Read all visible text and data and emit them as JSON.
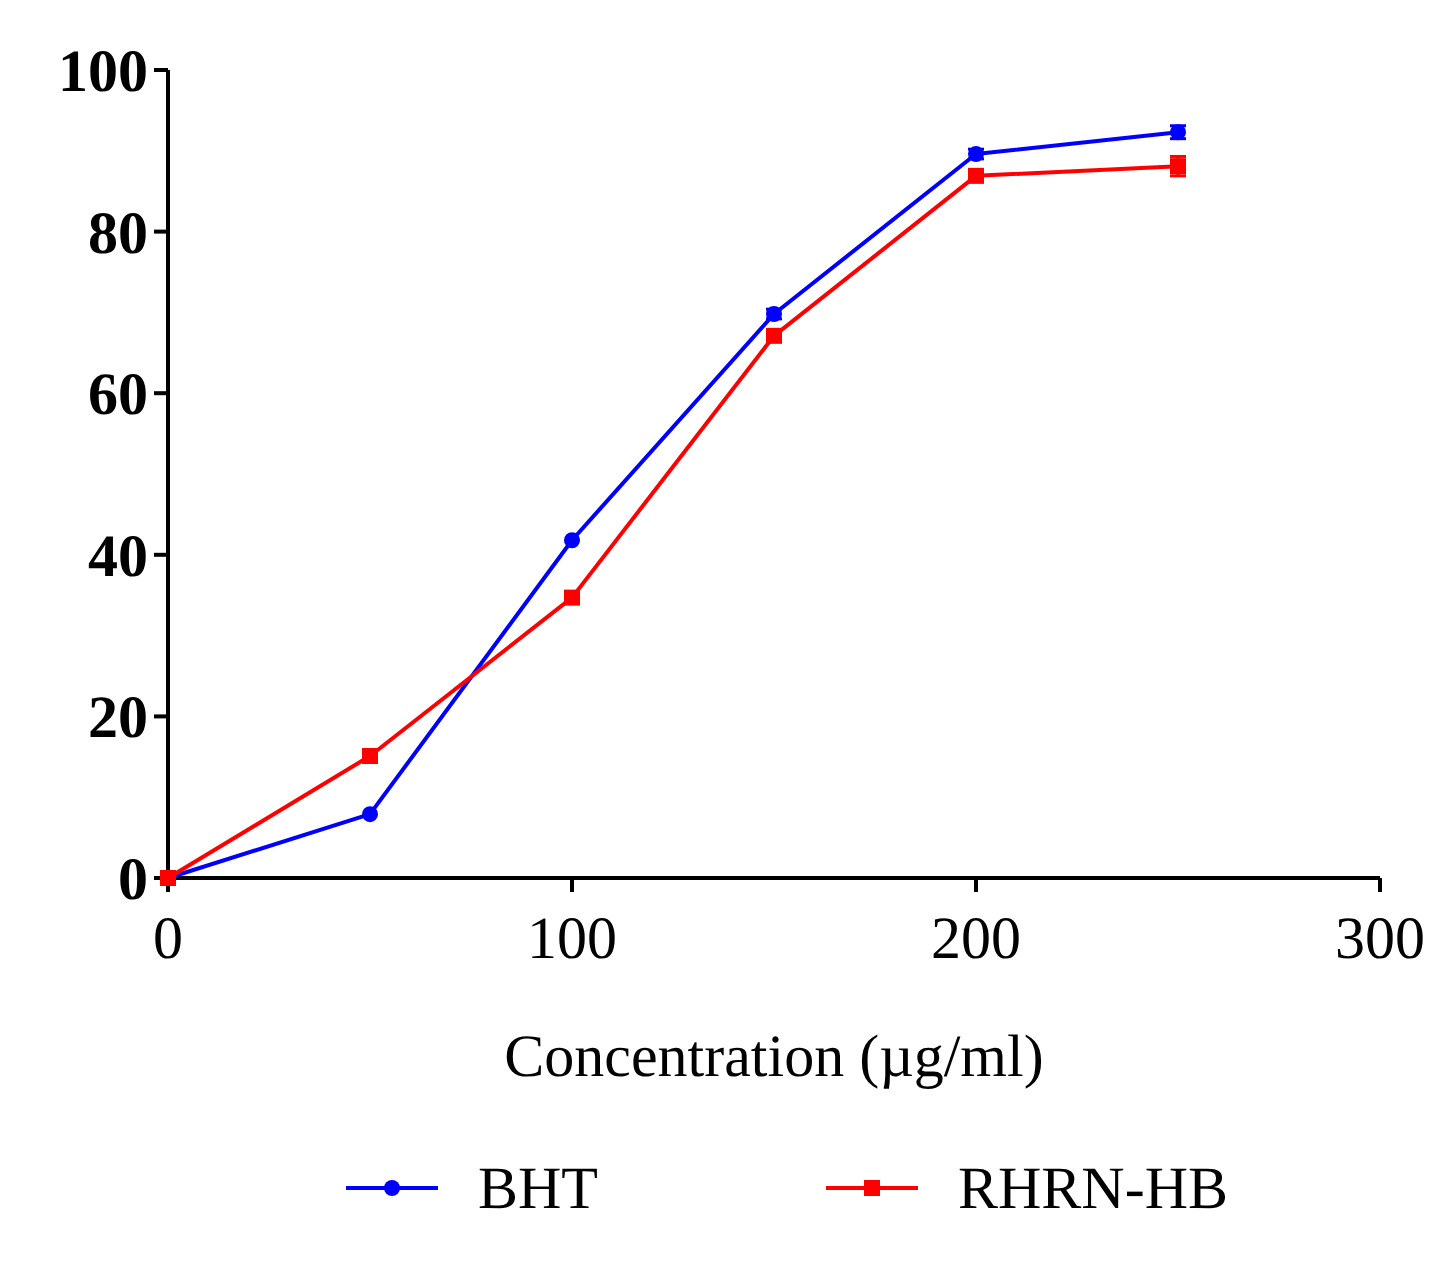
{
  "chart_data": {
    "type": "line",
    "xlabel": "Concentration (µg/ml)",
    "x": [
      0,
      50,
      100,
      150,
      200,
      250
    ],
    "series": [
      {
        "name": "BHT",
        "color": "#0000ff",
        "marker": "circle",
        "values": [
          0,
          7.9,
          41.8,
          69.8,
          89.6,
          92.3
        ],
        "errors": [
          null,
          null,
          null,
          0.6,
          0.6,
          0.8
        ]
      },
      {
        "name": "RHRN-HB",
        "color": "#ff0000",
        "marker": "square",
        "values": [
          0,
          15.1,
          34.7,
          67.1,
          86.9,
          88.1
        ],
        "errors": [
          null,
          null,
          null,
          0.6,
          0.6,
          1.2
        ]
      }
    ],
    "xlim": [
      0,
      300
    ],
    "xticks": [
      0,
      100,
      200,
      300
    ],
    "ylim": [
      0,
      100
    ],
    "yticks": [
      0,
      20,
      40,
      60,
      80,
      100
    ],
    "grid": false,
    "legend": "bottom",
    "line_style": "solid"
  }
}
